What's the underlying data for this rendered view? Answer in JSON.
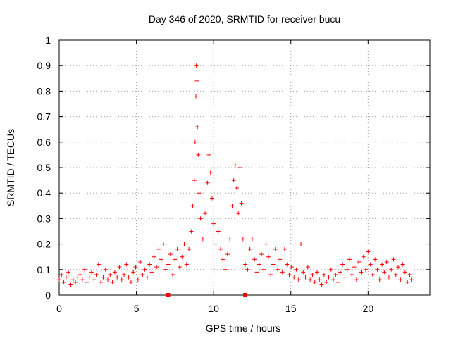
{
  "chart_data": {
    "type": "scatter",
    "title": "Day 346 of 2020, SRMTID for receiver bucu",
    "xlabel": "GPS time / hours",
    "ylabel": "SRMTID / TECUs",
    "xlim": [
      0,
      24
    ],
    "ylim": [
      0,
      1
    ],
    "xticks": [
      0,
      5,
      10,
      15,
      20
    ],
    "xtick_labels": [
      "0",
      "5",
      "10",
      "15",
      "20"
    ],
    "yticks": [
      0,
      0.1,
      0.2,
      0.3,
      0.4,
      0.5,
      0.6,
      0.7,
      0.8,
      0.9,
      1
    ],
    "ytick_labels": [
      "0",
      "0.1",
      "0.2",
      "0.3",
      "0.4",
      "0.5",
      "0.6",
      "0.7",
      "0.8",
      "0.9",
      "1"
    ],
    "grid": true,
    "marker": "+",
    "color": "#ff0000",
    "series": [
      {
        "name": "SRMTID",
        "points": [
          [
            0.0,
            0.06
          ],
          [
            0.15,
            0.08
          ],
          [
            0.3,
            0.05
          ],
          [
            0.45,
            0.07
          ],
          [
            0.6,
            0.09
          ],
          [
            0.75,
            0.04
          ],
          [
            0.9,
            0.06
          ],
          [
            1.05,
            0.05
          ],
          [
            1.2,
            0.07
          ],
          [
            1.35,
            0.08
          ],
          [
            1.5,
            0.06
          ],
          [
            1.65,
            0.1
          ],
          [
            1.8,
            0.05
          ],
          [
            1.95,
            0.07
          ],
          [
            2.1,
            0.09
          ],
          [
            2.25,
            0.06
          ],
          [
            2.4,
            0.08
          ],
          [
            2.55,
            0.12
          ],
          [
            2.7,
            0.05
          ],
          [
            2.85,
            0.07
          ],
          [
            3.0,
            0.1
          ],
          [
            3.15,
            0.06
          ],
          [
            3.3,
            0.08
          ],
          [
            3.45,
            0.05
          ],
          [
            3.6,
            0.09
          ],
          [
            3.75,
            0.07
          ],
          [
            3.9,
            0.11
          ],
          [
            4.05,
            0.06
          ],
          [
            4.2,
            0.08
          ],
          [
            4.35,
            0.12
          ],
          [
            4.5,
            0.07
          ],
          [
            4.65,
            0.05
          ],
          [
            4.8,
            0.09
          ],
          [
            4.95,
            0.11
          ],
          [
            5.1,
            0.06
          ],
          [
            5.25,
            0.13
          ],
          [
            5.4,
            0.08
          ],
          [
            5.55,
            0.1
          ],
          [
            5.7,
            0.07
          ],
          [
            5.85,
            0.12
          ],
          [
            6.0,
            0.09
          ],
          [
            6.15,
            0.15
          ],
          [
            6.3,
            0.11
          ],
          [
            6.45,
            0.18
          ],
          [
            6.6,
            0.14
          ],
          [
            6.75,
            0.2
          ],
          [
            6.9,
            0.1
          ],
          [
            7.05,
            0.12
          ],
          [
            7.2,
            0.16
          ],
          [
            7.35,
            0.08
          ],
          [
            7.5,
            0.14
          ],
          [
            7.65,
            0.18
          ],
          [
            7.8,
            0.11
          ],
          [
            7.95,
            0.15
          ],
          [
            8.1,
            0.2
          ],
          [
            8.25,
            0.12
          ],
          [
            8.4,
            0.18
          ],
          [
            8.55,
            0.25
          ],
          [
            8.65,
            0.35
          ],
          [
            8.75,
            0.45
          ],
          [
            8.8,
            0.6
          ],
          [
            8.85,
            0.78
          ],
          [
            8.88,
            0.9
          ],
          [
            8.92,
            0.84
          ],
          [
            8.95,
            0.66
          ],
          [
            9.0,
            0.55
          ],
          [
            9.05,
            0.4
          ],
          [
            9.15,
            0.3
          ],
          [
            9.3,
            0.22
          ],
          [
            9.45,
            0.32
          ],
          [
            9.6,
            0.44
          ],
          [
            9.7,
            0.55
          ],
          [
            9.8,
            0.48
          ],
          [
            9.9,
            0.38
          ],
          [
            10.0,
            0.28
          ],
          [
            10.15,
            0.2
          ],
          [
            10.3,
            0.25
          ],
          [
            10.45,
            0.18
          ],
          [
            10.6,
            0.14
          ],
          [
            10.75,
            0.1
          ],
          [
            10.9,
            0.16
          ],
          [
            11.05,
            0.22
          ],
          [
            11.2,
            0.35
          ],
          [
            11.3,
            0.45
          ],
          [
            11.4,
            0.51
          ],
          [
            11.5,
            0.42
          ],
          [
            11.6,
            0.32
          ],
          [
            11.7,
            0.5
          ],
          [
            11.8,
            0.36
          ],
          [
            11.9,
            0.22
          ],
          [
            12.05,
            0.12
          ],
          [
            12.2,
            0.1
          ],
          [
            12.35,
            0.18
          ],
          [
            12.5,
            0.22
          ],
          [
            12.65,
            0.14
          ],
          [
            12.8,
            0.09
          ],
          [
            12.95,
            0.12
          ],
          [
            13.1,
            0.16
          ],
          [
            13.25,
            0.1
          ],
          [
            13.4,
            0.2
          ],
          [
            13.55,
            0.15
          ],
          [
            13.7,
            0.08
          ],
          [
            13.85,
            0.12
          ],
          [
            14.0,
            0.18
          ],
          [
            14.15,
            0.1
          ],
          [
            14.3,
            0.14
          ],
          [
            14.45,
            0.09
          ],
          [
            14.6,
            0.18
          ],
          [
            14.75,
            0.12
          ],
          [
            14.9,
            0.08
          ],
          [
            15.05,
            0.11
          ],
          [
            15.2,
            0.07
          ],
          [
            15.35,
            0.1
          ],
          [
            15.5,
            0.06
          ],
          [
            15.65,
            0.2
          ],
          [
            15.8,
            0.09
          ],
          [
            15.95,
            0.07
          ],
          [
            16.1,
            0.11
          ],
          [
            16.25,
            0.06
          ],
          [
            16.4,
            0.08
          ],
          [
            16.55,
            0.05
          ],
          [
            16.7,
            0.09
          ],
          [
            16.85,
            0.06
          ],
          [
            17.0,
            0.04
          ],
          [
            17.15,
            0.08
          ],
          [
            17.3,
            0.05
          ],
          [
            17.45,
            0.07
          ],
          [
            17.6,
            0.1
          ],
          [
            17.75,
            0.06
          ],
          [
            17.9,
            0.08
          ],
          [
            18.05,
            0.05
          ],
          [
            18.2,
            0.09
          ],
          [
            18.35,
            0.12
          ],
          [
            18.5,
            0.07
          ],
          [
            18.65,
            0.1
          ],
          [
            18.8,
            0.14
          ],
          [
            18.95,
            0.08
          ],
          [
            19.1,
            0.11
          ],
          [
            19.25,
            0.06
          ],
          [
            19.4,
            0.13
          ],
          [
            19.55,
            0.09
          ],
          [
            19.7,
            0.15
          ],
          [
            19.85,
            0.1
          ],
          [
            20.0,
            0.17
          ],
          [
            20.15,
            0.12
          ],
          [
            20.3,
            0.08
          ],
          [
            20.45,
            0.14
          ],
          [
            20.6,
            0.1
          ],
          [
            20.75,
            0.06
          ],
          [
            20.9,
            0.12
          ],
          [
            21.05,
            0.09
          ],
          [
            21.2,
            0.13
          ],
          [
            21.35,
            0.07
          ],
          [
            21.5,
            0.1
          ],
          [
            21.65,
            0.14
          ],
          [
            21.8,
            0.08
          ],
          [
            21.95,
            0.11
          ],
          [
            22.1,
            0.06
          ],
          [
            22.25,
            0.12
          ],
          [
            22.4,
            0.09
          ],
          [
            22.55,
            0.05
          ],
          [
            22.7,
            0.08
          ],
          [
            22.8,
            0.06
          ]
        ]
      }
    ],
    "axis_markers": [
      7.05,
      12.05
    ]
  }
}
